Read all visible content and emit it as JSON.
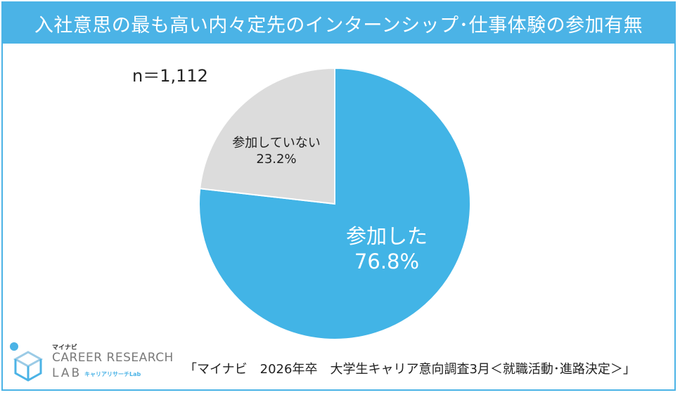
{
  "title": "入社意思の最も高い内々定先のインターンシップ･仕事体験の参加有無",
  "sample_size": "n＝1,112",
  "chart_data": {
    "type": "pie",
    "slices": [
      {
        "label": "参加した",
        "value": 76.8,
        "value_label": "76.8%",
        "color": "#42b4e6"
      },
      {
        "label": "参加していない",
        "value": 23.2,
        "value_label": "23.2%",
        "color": "#dcdcdc"
      }
    ]
  },
  "logo": {
    "small": "マイナビ",
    "main": "CAREER RESEARCH",
    "lab": "LAB",
    "sub": "キャリアリサーチLab"
  },
  "source": "「マイナビ　2026年卒　大学生キャリア意向調査3月＜就職活動･進路決定＞」",
  "colors": {
    "accent": "#4bb3e6"
  }
}
